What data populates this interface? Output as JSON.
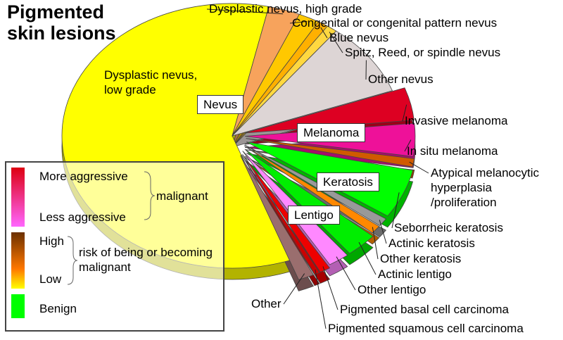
{
  "chart_data": {
    "type": "pie",
    "title": "Pigmented skin lesions",
    "categories": [
      "Dysplastic nevus, low grade",
      "Dysplastic nevus, high grade",
      "Congenital or congenital pattern nevus",
      "Blue nevus",
      "Spitz, Reed, or spindle nevus",
      "Other nevus",
      "Invasive melanoma",
      "In situ melanoma",
      "Atypical melanocytic hyperplasia /proliferation",
      "Seborrheic keratosis",
      "Actinic keratosis",
      "Other keratosis",
      "Actinic lentigo",
      "Other lentigo",
      "Pigmented basal cell carcinoma",
      "Pigmented squamous cell carcinoma",
      "Other"
    ],
    "values": [
      59,
      3,
      2,
      1,
      1,
      9,
      4,
      4,
      1,
      6,
      1,
      1,
      3,
      2,
      1,
      0.5,
      1.5
    ],
    "colors": [
      "#ffff00",
      "#f7a35c",
      "#ffc800",
      "#ffb000",
      "#ffd840",
      "#ddd5d5",
      "#dd0022",
      "#ee1199",
      "#d05a00",
      "#00ff00",
      "#999999",
      "#ff8800",
      "#00ee00",
      "#ff88ff",
      "#ee0000",
      "#cc0000",
      "#9a6e6e"
    ],
    "group_labels": [
      "Nevus",
      "Melanoma",
      "Keratosis",
      "Lentigo"
    ],
    "legend": [
      {
        "label": "malignant",
        "top": "More aggressive",
        "bottom": "Less aggressive"
      },
      {
        "label": "risk of being or becoming malignant",
        "top": "High",
        "bottom": "Low"
      },
      {
        "label": "Benign"
      }
    ]
  }
}
